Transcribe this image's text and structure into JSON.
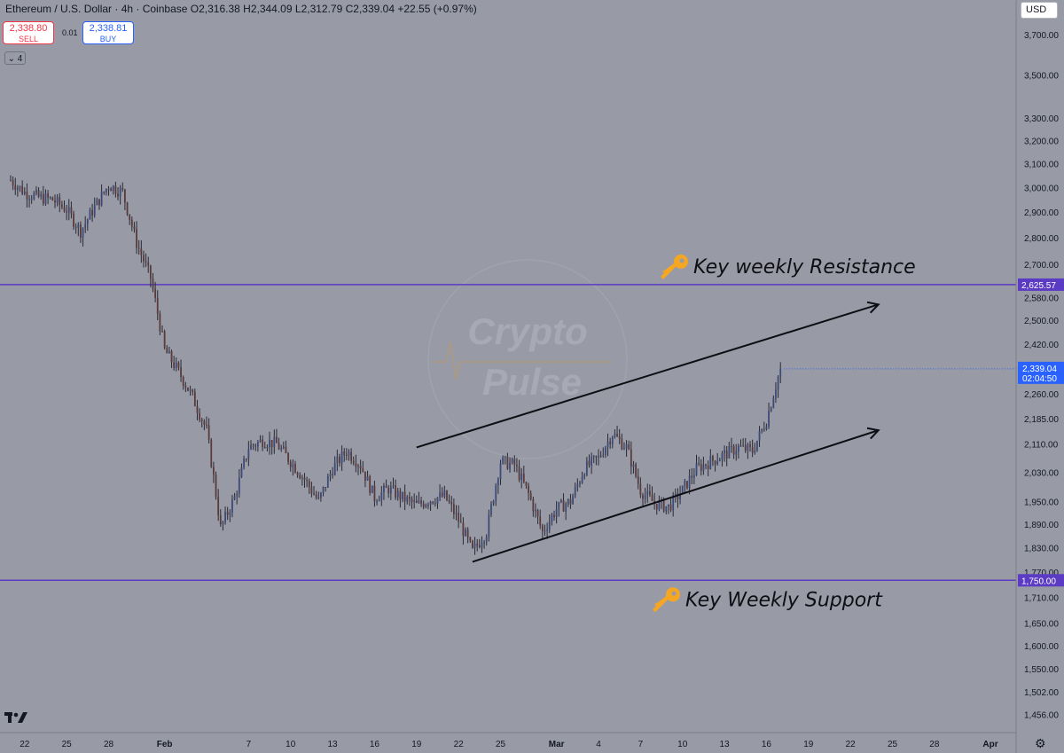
{
  "header": {
    "symbol": "Ethereum / U.S. Dollar · 4h · Coinbase",
    "open": "O2,316.38",
    "high": "H2,344.09",
    "low": "L2,312.79",
    "close": "C2,339.04",
    "change": "+22.55 (+0.97%)"
  },
  "trade": {
    "sell_price": "2,338.80",
    "sell_label": "SELL",
    "buy_price": "2,338.81",
    "buy_label": "BUY",
    "spread": "0.01"
  },
  "toolbar": {
    "interval_toggle": "4",
    "currency": "USD"
  },
  "colors": {
    "background": "#989ba5",
    "level_line": "#5b3bc4",
    "level_label_bg": "#5b3bc4",
    "price_label_bg": "#2962ff",
    "candle": "#2a2a36",
    "annotation": "#0e0e14",
    "key_icon": "#f5a623"
  },
  "chart_data": {
    "type": "candlestick",
    "title": "Ethereum / U.S. Dollar · 4h · Coinbase",
    "scale": "log",
    "ylim": [
      1420,
      3880
    ],
    "y_ticks": [
      "3,700.00",
      "3,500.00",
      "3,300.00",
      "3,200.00",
      "3,100.00",
      "3,000.00",
      "2,900.00",
      "2,800.00",
      "2,700.00",
      "2,580.00",
      "2,500.00",
      "2,420.00",
      "2,260.00",
      "2,185.00",
      "2,110.00",
      "2,030.00",
      "1,950.00",
      "1,890.00",
      "1,830.00",
      "1,770.00",
      "1,710.00",
      "1,650.00",
      "1,600.00",
      "1,550.00",
      "1,502.00",
      "1,456.00"
    ],
    "x_ticks": [
      "22",
      "25",
      "28",
      "Feb",
      "7",
      "10",
      "13",
      "16",
      "19",
      "22",
      "25",
      "Mar",
      "4",
      "7",
      "10",
      "13",
      "16",
      "19",
      "22",
      "25",
      "28",
      "Apr"
    ],
    "x_range": [
      "Jan 21",
      "Apr 1"
    ],
    "last_price": {
      "value": "2,339.04",
      "countdown": "02:04:50"
    },
    "levels": [
      {
        "value": 2625.57,
        "label": "2,625.57",
        "annotation": "Key weekly Resistance"
      },
      {
        "value": 1750.0,
        "label": "1,750.00",
        "annotation": "Key Weekly Support"
      }
    ],
    "trend_arrows": [
      {
        "from": {
          "date": "Feb 19",
          "price": 2100
        },
        "to": {
          "date": "Mar 24",
          "price": 2555
        }
      },
      {
        "from": {
          "date": "Feb 23",
          "price": 1795
        },
        "to": {
          "date": "Mar 24",
          "price": 2150
        }
      }
    ],
    "price_path": [
      [
        "Jan 21",
        3030
      ],
      [
        "Jan 22",
        2980
      ],
      [
        "Jan 23",
        2960
      ],
      [
        "Jan 24",
        2950
      ],
      [
        "Jan 25",
        2910
      ],
      [
        "Jan 26",
        2825
      ],
      [
        "Jan 27",
        2920
      ],
      [
        "Jan 28",
        3010
      ],
      [
        "Jan 29",
        2980
      ],
      [
        "Jan 30",
        2780
      ],
      [
        "Jan 31",
        2650
      ],
      [
        "Feb 1",
        2400
      ],
      [
        "Feb 2",
        2330
      ],
      [
        "Feb 3",
        2250
      ],
      [
        "Feb 4",
        2150
      ],
      [
        "Feb 5",
        1880
      ],
      [
        "Feb 6",
        1960
      ],
      [
        "Feb 7",
        2100
      ],
      [
        "Feb 8",
        2120
      ],
      [
        "Feb 9",
        2110
      ],
      [
        "Feb 10",
        2060
      ],
      [
        "Feb 11",
        2010
      ],
      [
        "Feb 12",
        1950
      ],
      [
        "Feb 13",
        2040
      ],
      [
        "Feb 14",
        2090
      ],
      [
        "Feb 15",
        2050
      ],
      [
        "Feb 16",
        1960
      ],
      [
        "Feb 17",
        1985
      ],
      [
        "Feb 18",
        1960
      ],
      [
        "Feb 19",
        1940
      ],
      [
        "Feb 20",
        1955
      ],
      [
        "Feb 21",
        1965
      ],
      [
        "Feb 22",
        1900
      ],
      [
        "Feb 23",
        1820
      ],
      [
        "Feb 24",
        1870
      ],
      [
        "Feb 25",
        2060
      ],
      [
        "Feb 26",
        2050
      ],
      [
        "Feb 27",
        1970
      ],
      [
        "Feb 28",
        1870
      ],
      [
        "Mar 1",
        1930
      ],
      [
        "Mar 2",
        1950
      ],
      [
        "Mar 3",
        2040
      ],
      [
        "Mar 4",
        2070
      ],
      [
        "Mar 5",
        2140
      ],
      [
        "Mar 6",
        2100
      ],
      [
        "Mar 7",
        1980
      ],
      [
        "Mar 8",
        1945
      ],
      [
        "Mar 9",
        1935
      ],
      [
        "Mar 10",
        1980
      ],
      [
        "Mar 11",
        2040
      ],
      [
        "Mar 12",
        2060
      ],
      [
        "Mar 13",
        2080
      ],
      [
        "Mar 14",
        2100
      ],
      [
        "Mar 15",
        2090
      ],
      [
        "Mar 16",
        2180
      ],
      [
        "Mar 17",
        2339
      ]
    ]
  },
  "branding": {
    "watermark_line1": "Crypto",
    "watermark_line2": "Pulse"
  }
}
